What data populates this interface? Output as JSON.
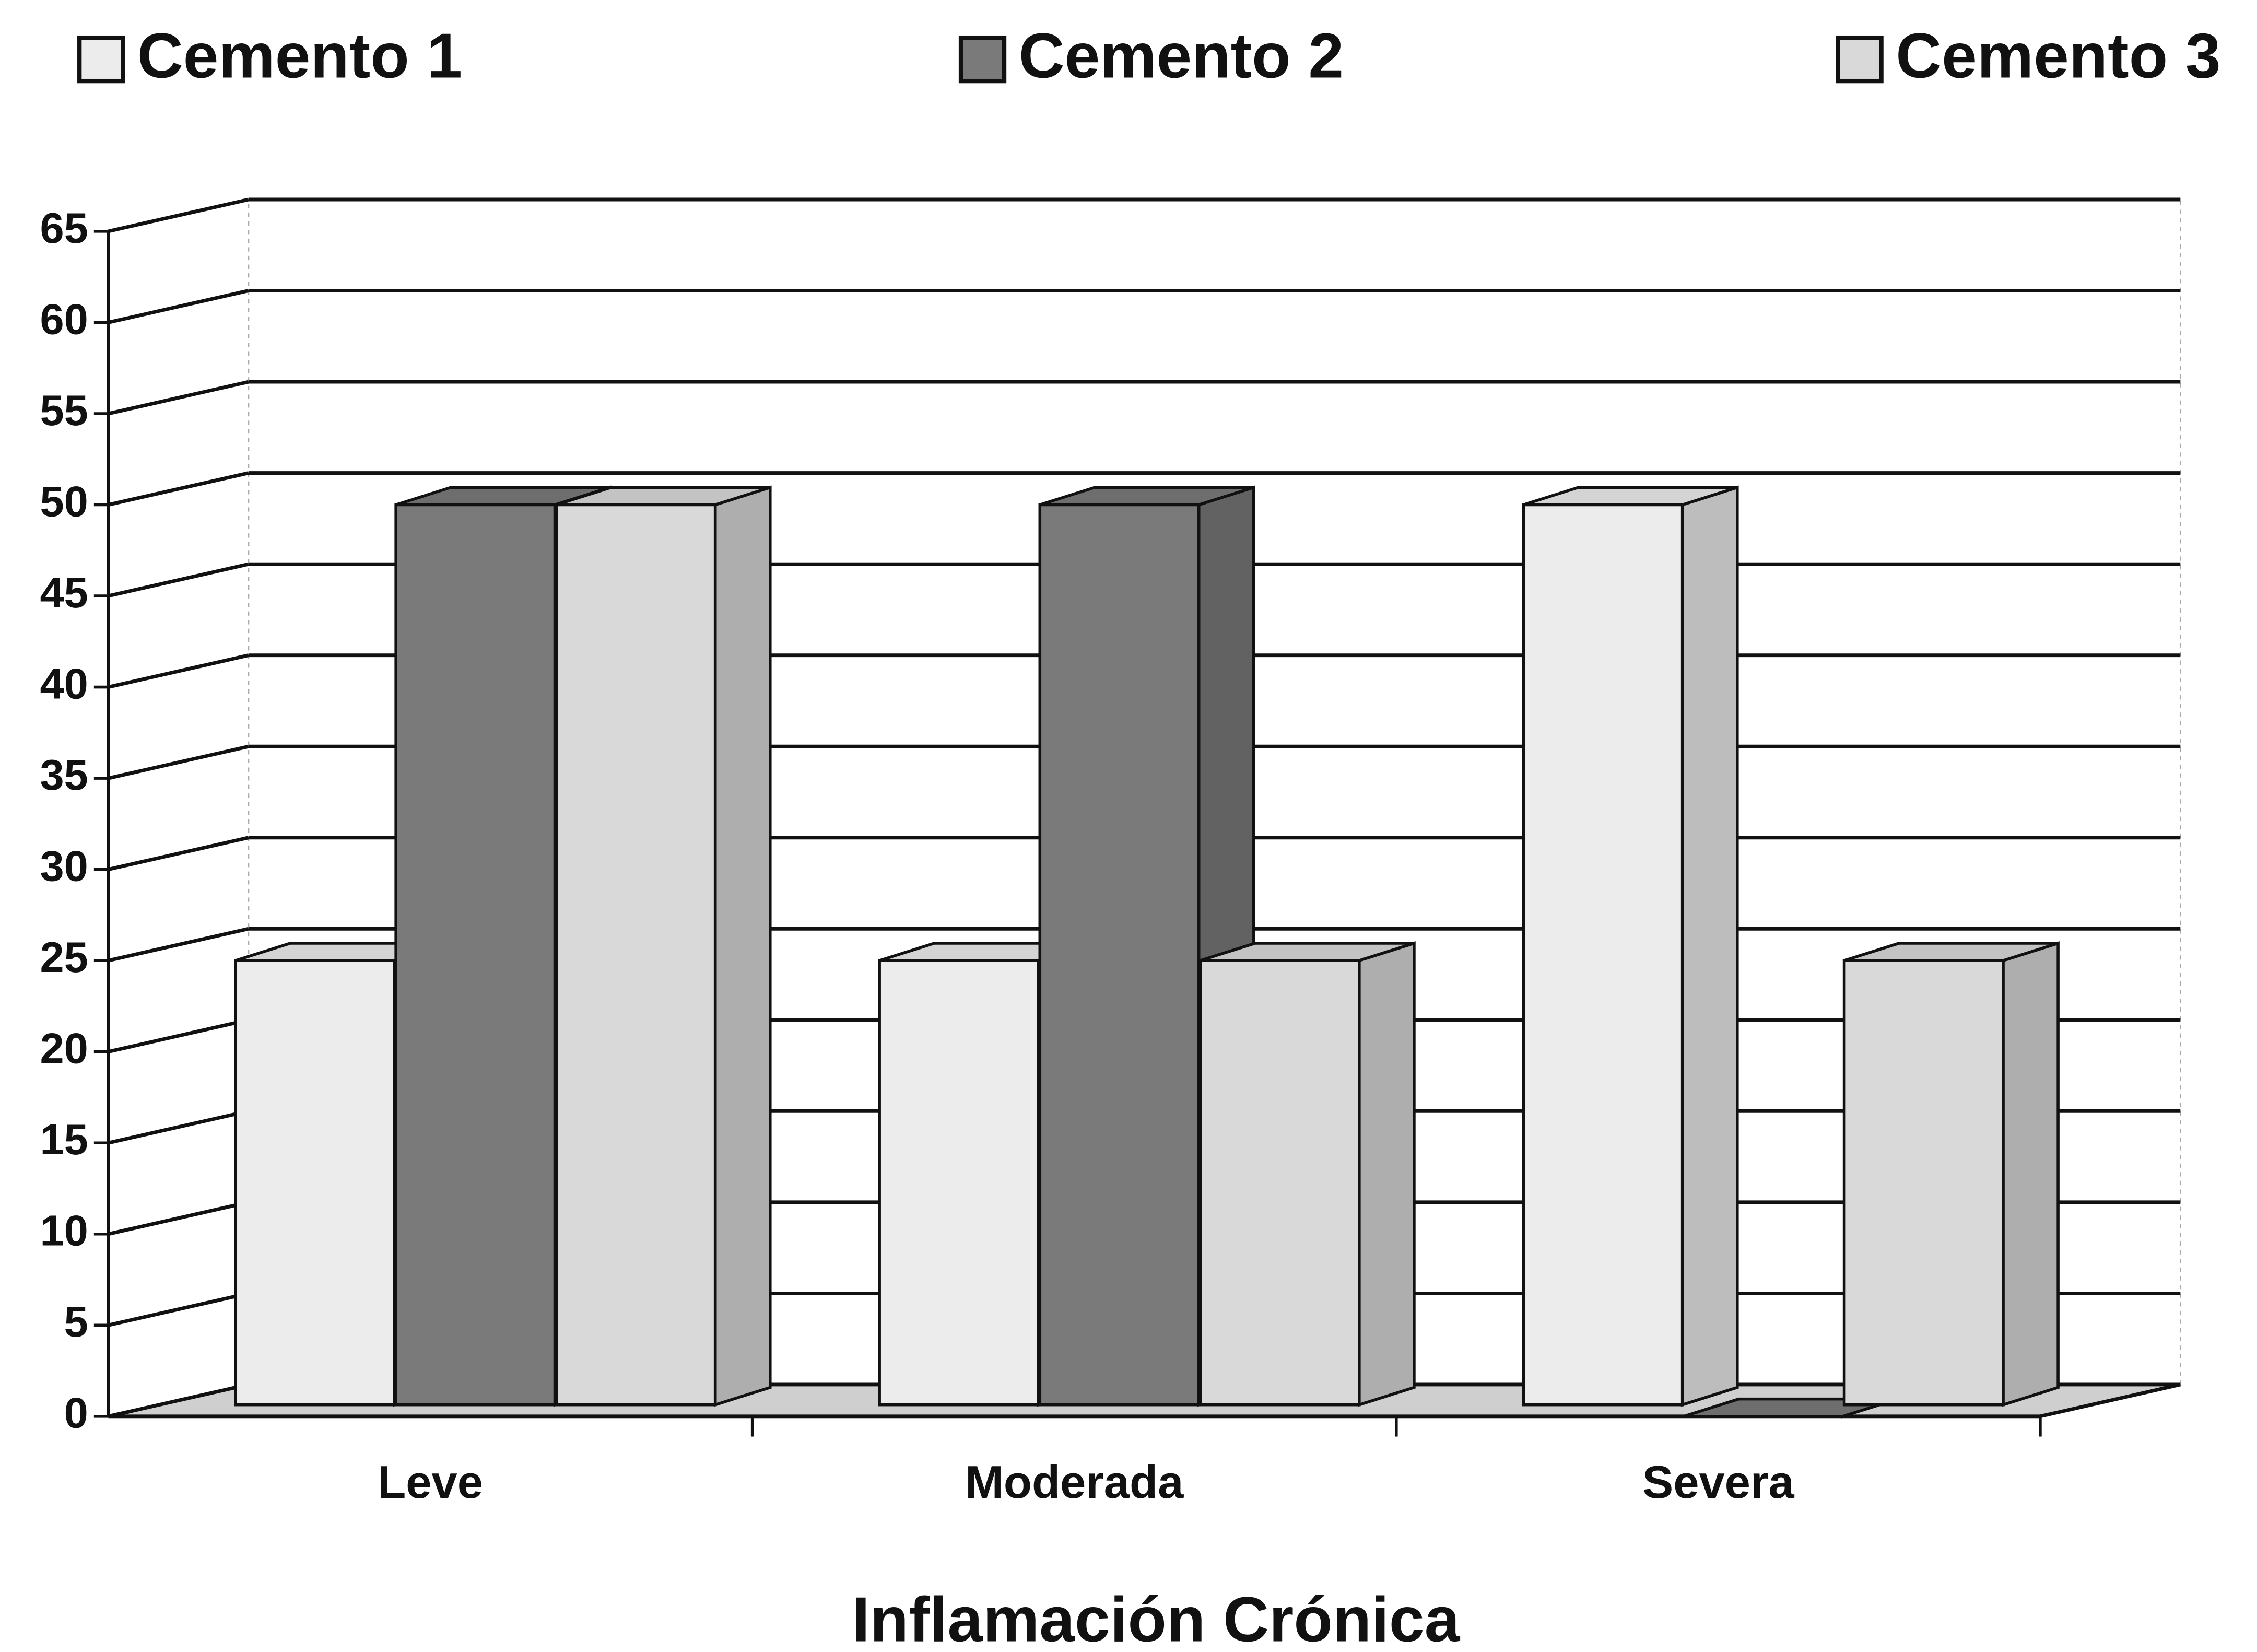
{
  "chart_data": {
    "type": "bar3d",
    "title": "Inflamación Crónica",
    "categories": [
      "Leve",
      "Moderada",
      "Severa"
    ],
    "series": [
      {
        "name": "Cemento 1",
        "color": "#ececec",
        "values": [
          25,
          25,
          50
        ]
      },
      {
        "name": "Cemento 2",
        "color": "#7a7a7a",
        "values": [
          50,
          50,
          0
        ]
      },
      {
        "name": "Cemento 3",
        "color": "#d9d9d9",
        "values": [
          50,
          25,
          25
        ]
      }
    ],
    "ylim": [
      0,
      65
    ],
    "yticks": [
      0,
      5,
      10,
      15,
      20,
      25,
      30,
      35,
      40,
      45,
      50,
      55,
      60,
      65
    ],
    "grid": true,
    "legend": "top"
  }
}
